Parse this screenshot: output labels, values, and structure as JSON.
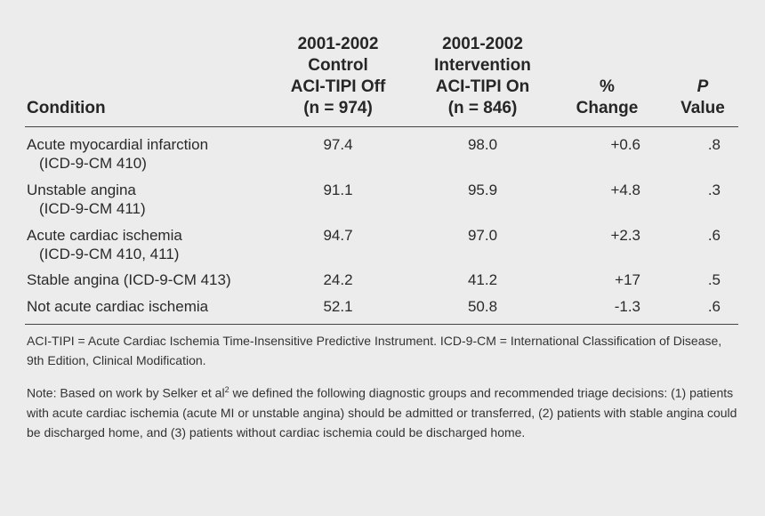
{
  "headers": {
    "condition": "Condition",
    "control": [
      "2001-2002",
      "Control",
      "ACI-TIPI Off",
      "(n = 974)"
    ],
    "intervention": [
      "2001-2002",
      "Intervention",
      "ACI-TIPI On",
      "(n = 846)"
    ],
    "change": [
      "%",
      "Change"
    ],
    "pvalue": [
      "P",
      "Value"
    ]
  },
  "rows": [
    {
      "condition": [
        "Acute myocardial infarction",
        "(ICD-9-CM 410)"
      ],
      "control": "97.4",
      "intervention": "98.0",
      "change": "+0.6",
      "p": ".8"
    },
    {
      "condition": [
        "Unstable angina",
        "(ICD-9-CM 411)"
      ],
      "control": "91.1",
      "intervention": "95.9",
      "change": "+4.8",
      "p": ".3"
    },
    {
      "condition": [
        "Acute cardiac ischemia",
        "(ICD-9-CM 410, 411)"
      ],
      "control": "94.7",
      "intervention": "97.0",
      "change": "+2.3",
      "p": ".6"
    },
    {
      "condition": [
        "Stable angina (ICD-9-CM 413)"
      ],
      "control": "24.2",
      "intervention": "41.2",
      "change": "+17",
      "p": ".5"
    },
    {
      "condition": [
        "Not acute cardiac ischemia"
      ],
      "control": "52.1",
      "intervention": "50.8",
      "change": "-1.3",
      "p": ".6"
    }
  ],
  "footnotes": {
    "abbreviations": "ACI-TIPI = Acute Cardiac Ischemia Time-Insensitive Predictive Instrument. ICD-9-CM = International Classification of Disease, 9th Edition, Clinical Modification.",
    "note_before_sup": "Note: Based on work by Selker et al",
    "note_sup": "2",
    "note_after_sup": " we defined the following diagnostic groups and recommended triage decisions: (1) patients with acute cardiac ischemia (acute MI or unstable angina) should be admitted or transferred, (2) patients with stable angina could be discharged home, and (3) patients without cardiac ischemia could be discharged home."
  }
}
